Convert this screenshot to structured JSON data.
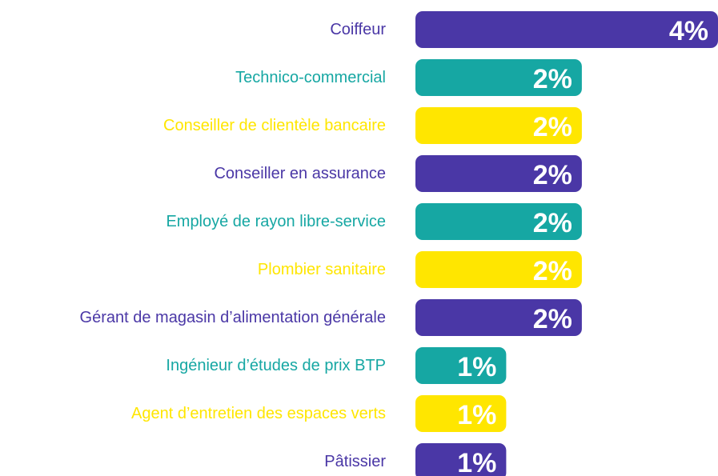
{
  "chart_data": {
    "type": "bar",
    "orientation": "horizontal",
    "categories": [
      "Coiffeur",
      "Technico-commercial",
      "Conseiller de clientèle bancaire",
      "Conseiller en assurance",
      "Employé de rayon libre-service",
      "Plombier sanitaire",
      "Gérant de magasin d’alimentation générale",
      "Ingénieur d’études de prix BTP",
      "Agent d’entretien des espaces verts",
      "Pâtissier"
    ],
    "values": [
      4.0,
      2.2,
      2.2,
      2.2,
      2.2,
      2.2,
      2.2,
      1.2,
      1.2,
      1.2
    ],
    "value_labels": [
      "4%",
      "2%",
      "2%",
      "2%",
      "2%",
      "2%",
      "2%",
      "1%",
      "1%",
      "1%"
    ],
    "colors": [
      "#4a37a6",
      "#16a7a3",
      "#ffe600",
      "#4a37a6",
      "#16a7a3",
      "#ffe600",
      "#4a37a6",
      "#16a7a3",
      "#ffe600",
      "#4a37a6"
    ],
    "xlim": [
      0,
      4
    ]
  }
}
